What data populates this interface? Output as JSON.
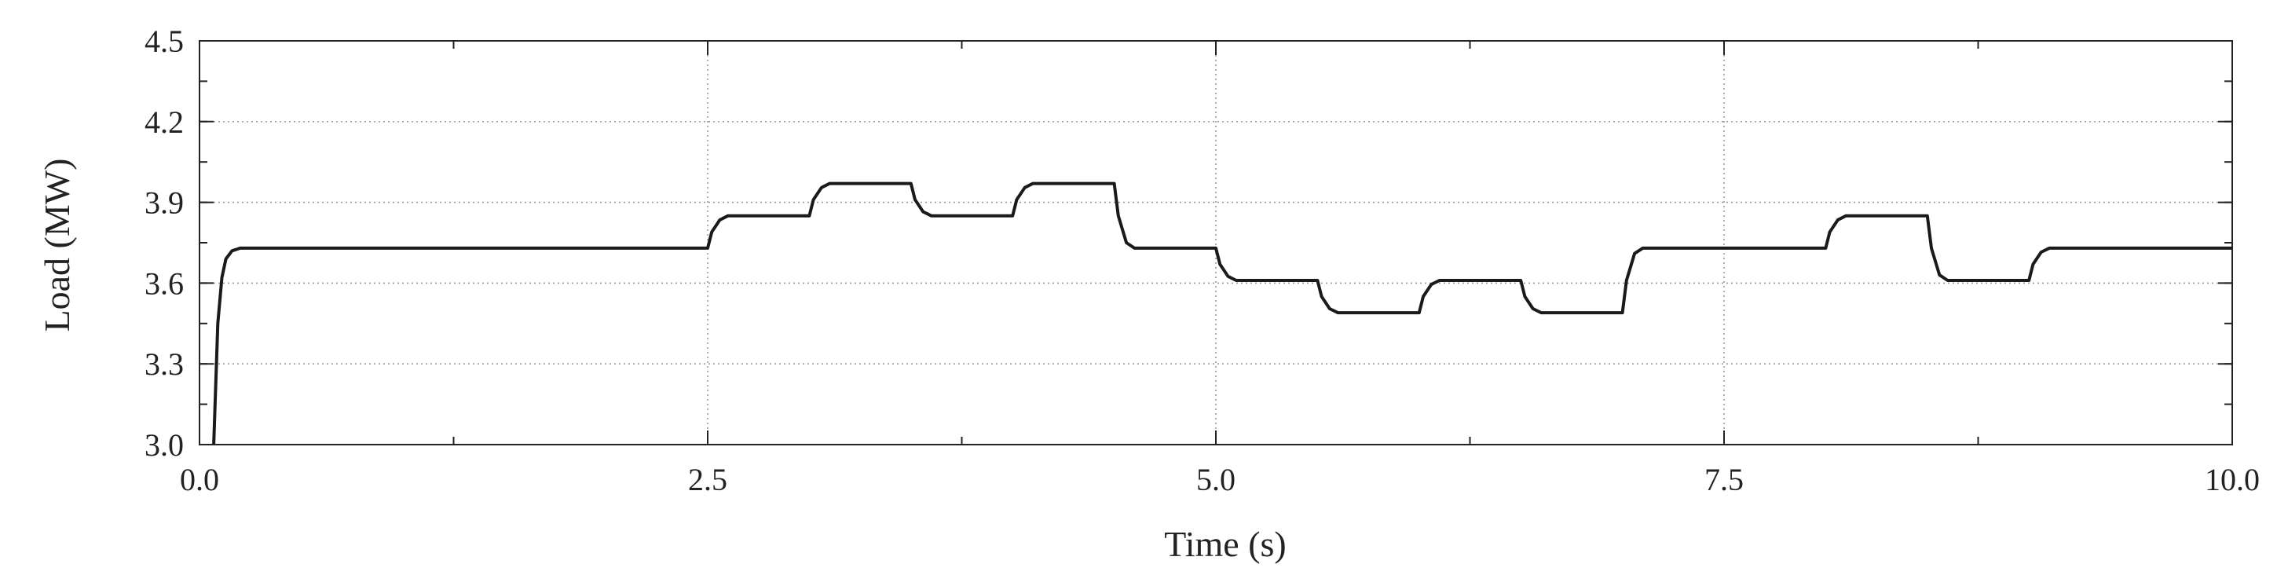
{
  "chart_data": {
    "type": "line",
    "xlabel": "Time (s)",
    "ylabel": "Load (MW)",
    "xlim": [
      0,
      10
    ],
    "ylim": [
      3.0,
      4.5
    ],
    "x_ticks": [
      0.0,
      2.5,
      5.0,
      7.5,
      10.0
    ],
    "x_tick_labels": [
      "0.0",
      "2.5",
      "5.0",
      "7.5",
      "10.0"
    ],
    "y_ticks": [
      3.0,
      3.3,
      3.6,
      3.9,
      4.2,
      4.5
    ],
    "y_tick_labels": [
      "3.0",
      "3.3",
      "3.6",
      "3.9",
      "4.2",
      "4.5"
    ],
    "x_minor_step": 1.25,
    "y_minor_step": 0.15,
    "grid": true,
    "series": [
      {
        "name": "",
        "x": [
          0.07,
          0.09,
          0.11,
          0.13,
          0.16,
          0.2,
          2.5,
          2.52,
          2.56,
          2.6,
          3.0,
          3.02,
          3.06,
          3.1,
          3.5,
          3.52,
          3.56,
          3.6,
          4.0,
          4.02,
          4.06,
          4.1,
          4.5,
          4.52,
          4.56,
          4.6,
          5.0,
          5.02,
          5.06,
          5.1,
          5.5,
          5.52,
          5.56,
          5.6,
          6.0,
          6.02,
          6.06,
          6.1,
          6.5,
          6.52,
          6.56,
          6.6,
          7.0,
          7.02,
          7.06,
          7.1,
          8.0,
          8.02,
          8.06,
          8.1,
          8.5,
          8.52,
          8.56,
          8.6,
          9.0,
          9.02,
          9.06,
          9.1,
          10.0
        ],
        "y": [
          3.0,
          3.45,
          3.62,
          3.69,
          3.72,
          3.73,
          3.73,
          3.79,
          3.835,
          3.85,
          3.85,
          3.91,
          3.955,
          3.97,
          3.97,
          3.91,
          3.865,
          3.85,
          3.85,
          3.91,
          3.955,
          3.97,
          3.97,
          3.85,
          3.75,
          3.73,
          3.73,
          3.67,
          3.625,
          3.61,
          3.61,
          3.55,
          3.505,
          3.49,
          3.49,
          3.55,
          3.595,
          3.61,
          3.61,
          3.55,
          3.505,
          3.49,
          3.49,
          3.61,
          3.71,
          3.73,
          3.73,
          3.79,
          3.835,
          3.85,
          3.85,
          3.73,
          3.63,
          3.61,
          3.61,
          3.67,
          3.715,
          3.73,
          3.73
        ]
      }
    ]
  }
}
